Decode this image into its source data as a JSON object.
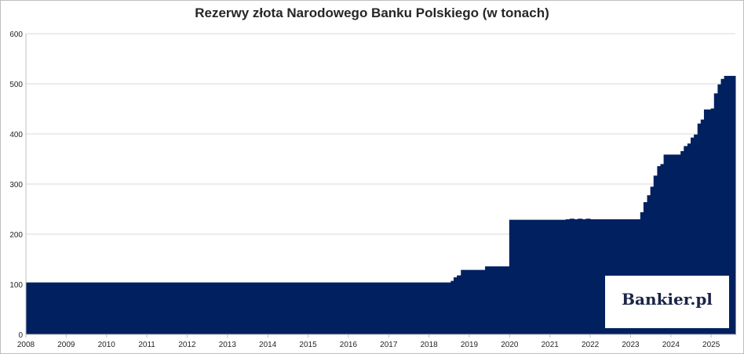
{
  "chart_data": {
    "type": "area",
    "title": "Rezerwy złota Narodowego Banku Polskiego (w tonach)",
    "xlabel": "",
    "ylabel": "",
    "ylim": [
      0,
      600
    ],
    "y_ticks": [
      "0",
      "100",
      "200",
      "300",
      "400",
      "500",
      "600"
    ],
    "xlim": [
      2008,
      2025.6
    ],
    "x_ticks": [
      "2008",
      "2009",
      "2010",
      "2011",
      "2012",
      "2013",
      "2014",
      "2015",
      "2016",
      "2017",
      "2018",
      "2019",
      "2020",
      "2021",
      "2022",
      "2023",
      "2024",
      "2025"
    ],
    "grid": true,
    "legend": "none",
    "color": "#002060",
    "series": [
      {
        "x": [
          2008.0,
          2018.45,
          2018.55,
          2018.62,
          2018.7,
          2018.8,
          2019.3,
          2019.4,
          2020.0,
          2021.3,
          2021.4,
          2021.5,
          2021.6,
          2021.7,
          2021.8,
          2021.9,
          2022.0,
          2022.2,
          2023.0,
          2023.2,
          2023.25,
          2023.33,
          2023.42,
          2023.5,
          2023.58,
          2023.67,
          2023.75,
          2023.83,
          2024.0,
          2024.08,
          2024.17,
          2024.25,
          2024.33,
          2024.42,
          2024.5,
          2024.58,
          2024.67,
          2024.75,
          2024.83,
          2025.0,
          2025.08,
          2025.17,
          2025.25,
          2025.33,
          2025.42,
          2025.5,
          2025.6
        ],
        "y": [
          103,
          103,
          106,
          113,
          117,
          128,
          128,
          135,
          228,
          228,
          229,
          230,
          229,
          230,
          229,
          230,
          229,
          229,
          229,
          229,
          243,
          263,
          277,
          294,
          316,
          335,
          339,
          358,
          358,
          358,
          358,
          365,
          375,
          380,
          392,
          398,
          420,
          428,
          448,
          450,
          480,
          498,
          509,
          515,
          515,
          515,
          515
        ]
      }
    ]
  },
  "logo": {
    "text": "Bankier.pl"
  }
}
